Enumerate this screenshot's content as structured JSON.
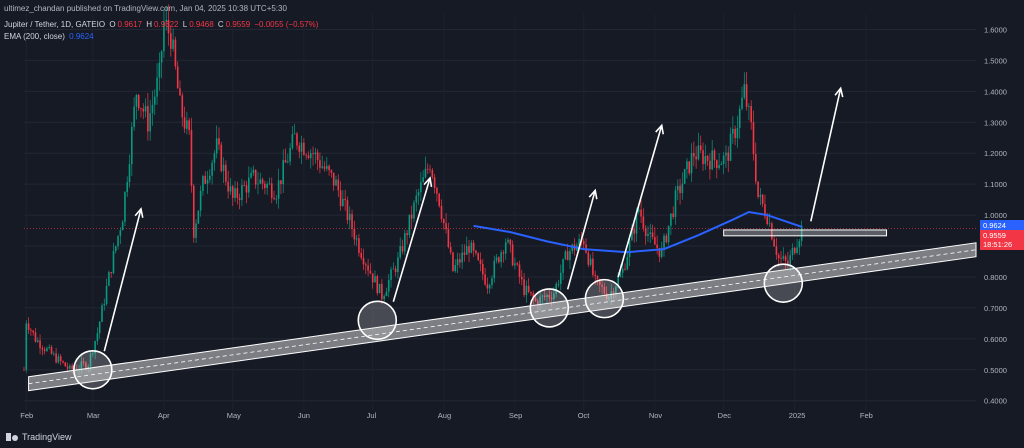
{
  "header": {
    "published": "ultimez_chandan published on TradingView.com, Jan 04, 2025 10:38 UTC+5:30",
    "symbol": "Jupiter / Tether, 1D, GATEIO",
    "o_label": "O",
    "o_value": "0.9617",
    "h_label": "H",
    "h_value": "0.9622",
    "l_label": "L",
    "l_value": "0.9468",
    "c_label": "C",
    "c_value": "0.9559",
    "change": "−0.0055 (−0.57%)",
    "ema_label": "EMA (200, close)",
    "ema_value": "0.9624"
  },
  "price_tags": {
    "ema": "0.9624",
    "close": "0.9559",
    "countdown": "18:51:26"
  },
  "footer": {
    "brand": "TradingView"
  },
  "colors": {
    "background": "#161a25",
    "up": "#089981",
    "down": "#f23645",
    "ema": "#2962ff",
    "annotation": "#ffffff"
  },
  "chart_data": {
    "type": "candlestick",
    "y_axis": {
      "min": 0.37,
      "max": 1.65,
      "ticks": [
        1.6,
        1.5,
        1.4,
        1.3,
        1.2,
        1.1,
        1.0,
        0.9,
        0.8,
        0.7,
        0.6,
        0.5,
        0.4
      ],
      "tick_labels": [
        "1.6000",
        "1.5000",
        "1.4000",
        "1.3000",
        "1.2000",
        "1.1000",
        "1.0000",
        "0.9000",
        "0.8000",
        "0.7000",
        "0.6000",
        "0.5000",
        "0.4000"
      ]
    },
    "x_axis": {
      "labels": [
        "Feb",
        "Mar",
        "Apr",
        "May",
        "Jun",
        "Jul",
        "Aug",
        "Sep",
        "Oct",
        "Nov",
        "Dec",
        "2025",
        "Feb"
      ],
      "positions": [
        "2024-02-01",
        "2024-03-01",
        "2024-04-01",
        "2024-05-01",
        "2024-06-01",
        "2024-07-01",
        "2024-08-01",
        "2024-09-01",
        "2024-10-01",
        "2024-11-01",
        "2024-12-01",
        "2025-01-01",
        "2025-02-01"
      ],
      "start": "2024-01-31",
      "end": "2025-03-21"
    },
    "price_path": [
      [
        "2024-01-31",
        0.5
      ],
      [
        "2024-02-01",
        0.66
      ],
      [
        "2024-02-05",
        0.6
      ],
      [
        "2024-02-12",
        0.55
      ],
      [
        "2024-02-20",
        0.5
      ],
      [
        "2024-02-28",
        0.52
      ],
      [
        "2024-03-03",
        0.62
      ],
      [
        "2024-03-08",
        0.8
      ],
      [
        "2024-03-14",
        1.0
      ],
      [
        "2024-03-20",
        1.4
      ],
      [
        "2024-03-25",
        1.3
      ],
      [
        "2024-03-30",
        1.45
      ],
      [
        "2024-04-01",
        1.62
      ],
      [
        "2024-04-04",
        1.58
      ],
      [
        "2024-04-08",
        1.35
      ],
      [
        "2024-04-12",
        1.25
      ],
      [
        "2024-04-14",
        0.95
      ],
      [
        "2024-04-18",
        1.1
      ],
      [
        "2024-04-24",
        1.22
      ],
      [
        "2024-05-01",
        1.05
      ],
      [
        "2024-05-10",
        1.12
      ],
      [
        "2024-05-20",
        1.08
      ],
      [
        "2024-05-28",
        1.25
      ],
      [
        "2024-06-05",
        1.2
      ],
      [
        "2024-06-15",
        1.1
      ],
      [
        "2024-06-25",
        0.9
      ],
      [
        "2024-07-01",
        0.8
      ],
      [
        "2024-07-05",
        0.74
      ],
      [
        "2024-07-12",
        0.85
      ],
      [
        "2024-07-20",
        1.05
      ],
      [
        "2024-07-26",
        1.17
      ],
      [
        "2024-07-30",
        1.05
      ],
      [
        "2024-08-05",
        0.82
      ],
      [
        "2024-08-12",
        0.9
      ],
      [
        "2024-08-20",
        0.78
      ],
      [
        "2024-08-28",
        0.92
      ],
      [
        "2024-09-05",
        0.76
      ],
      [
        "2024-09-10",
        0.72
      ],
      [
        "2024-09-18",
        0.75
      ],
      [
        "2024-09-24",
        0.88
      ],
      [
        "2024-10-01",
        0.92
      ],
      [
        "2024-10-06",
        0.78
      ],
      [
        "2024-10-12",
        0.74
      ],
      [
        "2024-10-18",
        0.82
      ],
      [
        "2024-10-25",
        1.02
      ],
      [
        "2024-10-30",
        0.92
      ],
      [
        "2024-11-04",
        0.88
      ],
      [
        "2024-11-10",
        1.05
      ],
      [
        "2024-11-18",
        1.2
      ],
      [
        "2024-11-26",
        1.18
      ],
      [
        "2024-12-02",
        1.18
      ],
      [
        "2024-12-07",
        1.3
      ],
      [
        "2024-12-10",
        1.4
      ],
      [
        "2024-12-13",
        1.28
      ],
      [
        "2024-12-16",
        1.06
      ],
      [
        "2024-12-20",
        1.0
      ],
      [
        "2024-12-25",
        0.86
      ],
      [
        "2024-12-29",
        0.84
      ],
      [
        "2025-01-02",
        0.92
      ],
      [
        "2025-01-04",
        0.956
      ]
    ],
    "ema_200": [
      [
        "2024-08-14",
        0.965
      ],
      [
        "2024-08-30",
        0.945
      ],
      [
        "2024-09-15",
        0.915
      ],
      [
        "2024-10-01",
        0.89
      ],
      [
        "2024-10-20",
        0.88
      ],
      [
        "2024-11-05",
        0.89
      ],
      [
        "2024-11-20",
        0.935
      ],
      [
        "2024-12-05",
        0.985
      ],
      [
        "2024-12-12",
        1.01
      ],
      [
        "2024-12-20",
        1.0
      ],
      [
        "2025-01-04",
        0.962
      ]
    ],
    "close_line": 0.9559,
    "annotations": {
      "support_channel": {
        "from": [
          "2024-02-02",
          0.455
        ],
        "to": [
          "2025-03-21",
          0.888
        ],
        "width": 0.045
      },
      "circles": [
        [
          "2024-03-01",
          0.5
        ],
        [
          "2024-07-03",
          0.66
        ],
        [
          "2024-09-16",
          0.7
        ],
        [
          "2024-10-10",
          0.73
        ],
        [
          "2024-12-27",
          0.78
        ]
      ],
      "arrows": [
        [
          [
            "2024-03-06",
            0.56
          ],
          [
            "2024-03-22",
            1.02
          ]
        ],
        [
          [
            "2024-07-10",
            0.72
          ],
          [
            "2024-07-26",
            1.12
          ]
        ],
        [
          [
            "2024-09-24",
            0.76
          ],
          [
            "2024-10-06",
            1.08
          ]
        ],
        [
          [
            "2024-10-16",
            0.8
          ],
          [
            "2024-11-04",
            1.29
          ]
        ],
        [
          [
            "2025-01-08",
            0.98
          ],
          [
            "2025-01-21",
            1.41
          ]
        ]
      ],
      "resistance_box": {
        "from": "2024-12-01",
        "to": "2025-02-10",
        "top": 0.952,
        "bottom": 0.933
      }
    }
  }
}
